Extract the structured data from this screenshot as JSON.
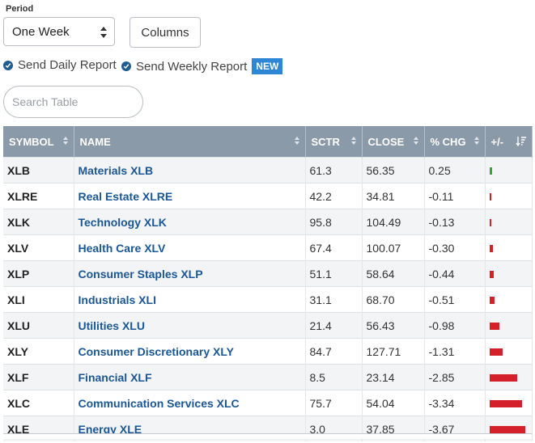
{
  "period": {
    "label": "Period",
    "selected": "One Week"
  },
  "columns_button": "Columns",
  "options": {
    "daily_report": "Send Daily Report",
    "weekly_report": "Send Weekly Report",
    "new_badge": "NEW"
  },
  "search": {
    "placeholder": "Search Table"
  },
  "table": {
    "headers": {
      "symbol": "SYMBOL",
      "name": "NAME",
      "sctr": "SCTR",
      "close": "CLOSE",
      "pct_chg": "% CHG",
      "plus_minus": "+/-"
    },
    "rows": [
      {
        "symbol": "XLB",
        "name": "Materials XLB",
        "sctr": "61.3",
        "close": "56.35",
        "pct_chg": "0.25"
      },
      {
        "symbol": "XLRE",
        "name": "Real Estate XLRE",
        "sctr": "42.2",
        "close": "34.81",
        "pct_chg": "-0.11"
      },
      {
        "symbol": "XLK",
        "name": "Technology XLK",
        "sctr": "95.8",
        "close": "104.49",
        "pct_chg": "-0.13"
      },
      {
        "symbol": "XLV",
        "name": "Health Care XLV",
        "sctr": "67.4",
        "close": "100.07",
        "pct_chg": "-0.30"
      },
      {
        "symbol": "XLP",
        "name": "Consumer Staples XLP",
        "sctr": "51.1",
        "close": "58.64",
        "pct_chg": "-0.44"
      },
      {
        "symbol": "XLI",
        "name": "Industrials XLI",
        "sctr": "31.1",
        "close": "68.70",
        "pct_chg": "-0.51"
      },
      {
        "symbol": "XLU",
        "name": "Utilities XLU",
        "sctr": "21.4",
        "close": "56.43",
        "pct_chg": "-0.98"
      },
      {
        "symbol": "XLY",
        "name": "Consumer Discretionary XLY",
        "sctr": "84.7",
        "close": "127.71",
        "pct_chg": "-1.31"
      },
      {
        "symbol": "XLF",
        "name": "Financial XLF",
        "sctr": "8.5",
        "close": "23.14",
        "pct_chg": "-2.85"
      },
      {
        "symbol": "XLC",
        "name": "Communication Services XLC",
        "sctr": "75.7",
        "close": "54.04",
        "pct_chg": "-3.34"
      },
      {
        "symbol": "XLE",
        "name": "Energy XLE",
        "sctr": "3.0",
        "close": "37.85",
        "pct_chg": "-3.67"
      }
    ]
  },
  "colors": {
    "positive": "#2eaa3c",
    "negative": "#d4202a",
    "header_bg": "#8a9aa8",
    "link": "#1a5794",
    "accent": "#2f86d4"
  },
  "icons": {
    "check": "check-circle-icon",
    "sort": "sort-arrows-icon",
    "sort_desc": "sort-descending-icon",
    "select_arrows": "select-arrows-icon"
  }
}
